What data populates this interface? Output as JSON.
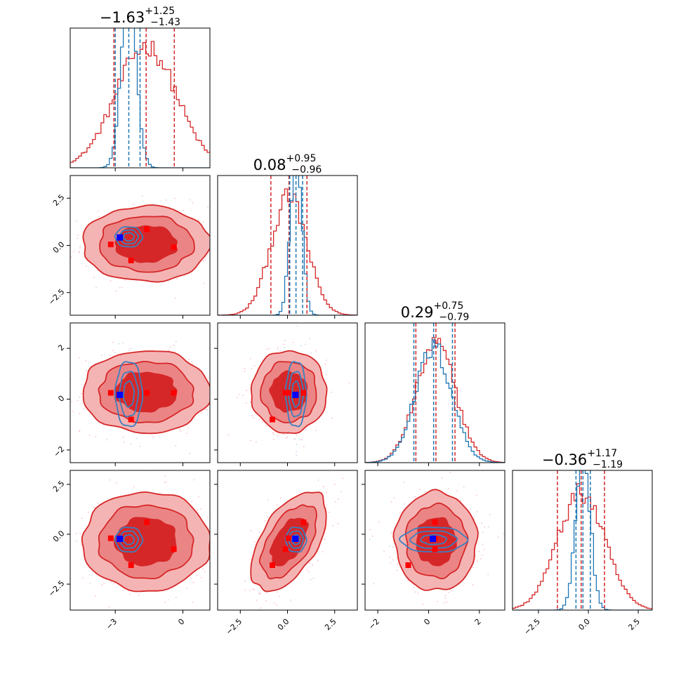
{
  "chart_data": {
    "type": "corner",
    "colors": {
      "wide": "#d62728",
      "narrow": "#1f77b4",
      "marker_red": "#ff0000",
      "marker_blue": "#0000ff",
      "scatter_wide": "#f4a6b8",
      "scatter_narrow": "#a8c8e8"
    },
    "params": [
      {
        "range": [
          -5.0,
          1.2
        ],
        "ticks": [
          -3,
          0
        ],
        "tick_labels": [
          "−3",
          "0"
        ],
        "title": {
          "main": "−1.63",
          "sup": "+1.25",
          "sub": "−1.43"
        },
        "wide": {
          "mean": -1.63,
          "sd": 1.35
        },
        "narrow": {
          "mean": -2.4,
          "sd": 0.33
        },
        "quantiles_wide": [
          -3.06,
          -1.63,
          -0.38
        ],
        "quantiles_narrow": [
          -3.0,
          -2.4,
          -1.9
        ]
      },
      {
        "range": [
          -3.7,
          3.7
        ],
        "ticks": [
          -2.5,
          0.0,
          2.5
        ],
        "tick_labels": [
          "−2.5",
          "0.0",
          "2.5"
        ],
        "title": {
          "main": "0.08",
          "sup": "+0.95",
          "sub": "−0.96"
        },
        "wide": {
          "mean": 0.08,
          "sd": 0.95
        },
        "narrow": {
          "mean": 0.45,
          "sd": 0.3
        },
        "quantiles_wide": [
          -0.88,
          0.08,
          1.03
        ],
        "quantiles_narrow": [
          0.12,
          0.45,
          0.8
        ]
      },
      {
        "range": [
          -2.5,
          3.0
        ],
        "ticks": [
          -2,
          0,
          2
        ],
        "tick_labels": [
          "−2",
          "0",
          "2"
        ],
        "title": {
          "main": "0.29",
          "sup": "+0.75",
          "sub": "−0.79"
        },
        "wide": {
          "mean": 0.29,
          "sd": 0.77
        },
        "narrow": {
          "mean": 0.2,
          "sd": 0.72
        },
        "quantiles_wide": [
          -0.5,
          0.29,
          1.04
        ],
        "quantiles_narrow": [
          -0.58,
          0.2,
          0.94
        ]
      },
      {
        "range": [
          -3.8,
          3.2
        ],
        "ticks": [
          -2.5,
          0.0,
          2.5
        ],
        "tick_labels": [
          "−2.5",
          "0.0",
          "2.5"
        ],
        "title": {
          "main": "−0.36",
          "sup": "+1.17",
          "sub": "−1.19"
        },
        "wide": {
          "mean": -0.36,
          "sd": 1.18
        },
        "narrow": {
          "mean": -0.27,
          "sd": 0.35
        },
        "quantiles_wide": [
          -1.55,
          -0.36,
          0.81
        ],
        "quantiles_narrow": [
          -0.62,
          -0.27,
          0.1
        ]
      }
    ],
    "truth": [
      -2.8,
      0.42,
      0.17,
      -0.23
    ],
    "red_markers": [
      [
        -3.2,
        0.05,
        0.25,
        -0.2
      ],
      [
        -1.6,
        0.85,
        0.25,
        0.6
      ],
      [
        -2.3,
        -0.8,
        -0.8,
        -1.55
      ],
      [
        -0.4,
        -0.1,
        0.25,
        -0.75
      ]
    ],
    "correlations": {
      "1-3": 0.55,
      "2-3": 0.0
    }
  }
}
